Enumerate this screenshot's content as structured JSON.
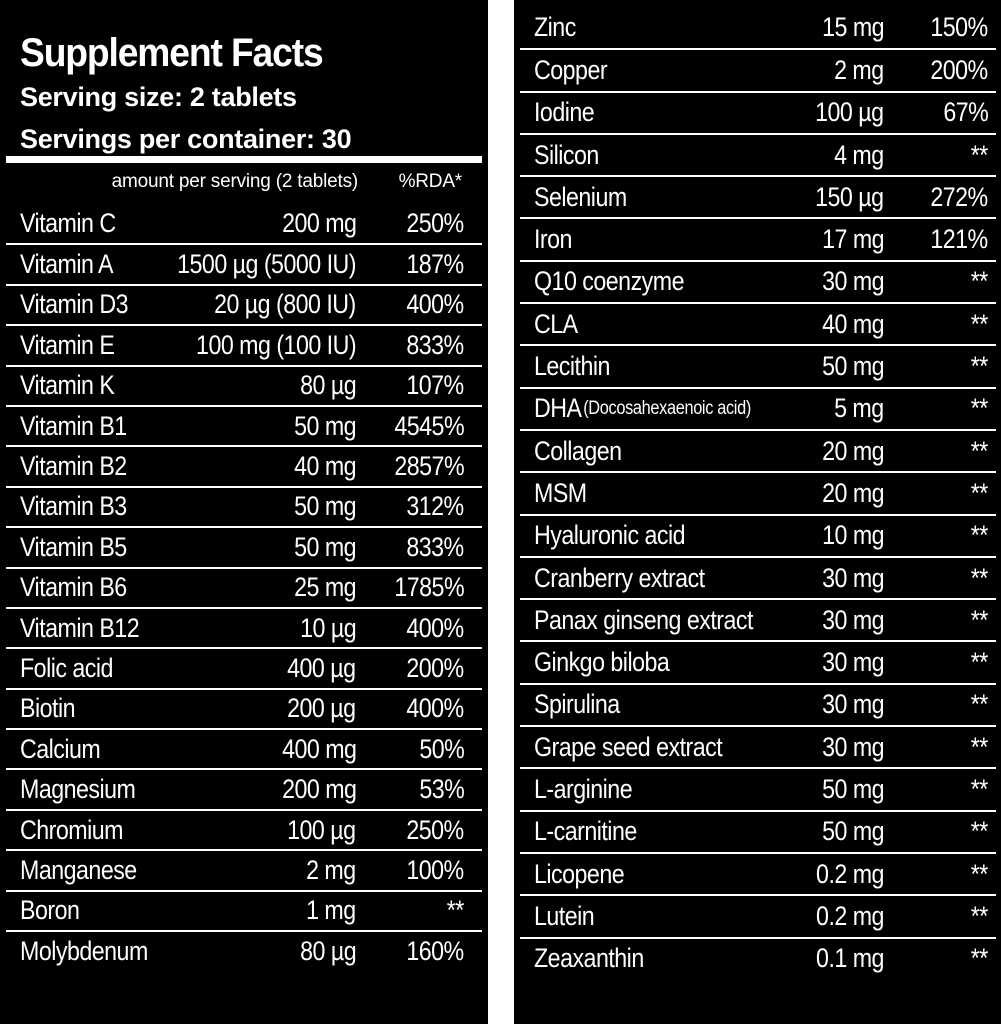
{
  "header": {
    "title": "Supplement Facts",
    "serving_size": "Serving size: 2 tablets",
    "servings_per_container": "Servings per container: 30"
  },
  "columns": {
    "amount_label": "amount per serving (2 tablets)",
    "rda_label": "%RDA*"
  },
  "left_rows": [
    {
      "name": "Vitamin C",
      "amount": "200 mg",
      "rda": "250%"
    },
    {
      "name": "Vitamin A",
      "amount": "1500 µg (5000 IU)",
      "rda": "187%"
    },
    {
      "name": "Vitamin D3",
      "amount": "20 µg (800 IU)",
      "rda": "400%"
    },
    {
      "name": "Vitamin E",
      "amount": "100 mg (100 IU)",
      "rda": "833%"
    },
    {
      "name": "Vitamin K",
      "amount": "80 µg",
      "rda": "107%"
    },
    {
      "name": "Vitamin B1",
      "amount": "50 mg",
      "rda": "4545%"
    },
    {
      "name": "Vitamin B2",
      "amount": "40 mg",
      "rda": "2857%"
    },
    {
      "name": "Vitamin B3",
      "amount": "50 mg",
      "rda": "312%"
    },
    {
      "name": "Vitamin B5",
      "amount": "50 mg",
      "rda": "833%"
    },
    {
      "name": "Vitamin B6",
      "amount": "25 mg",
      "rda": "1785%"
    },
    {
      "name": "Vitamin B12",
      "amount": "10 µg",
      "rda": "400%"
    },
    {
      "name": "Folic acid",
      "amount": "400 µg",
      "rda": "200%"
    },
    {
      "name": "Biotin",
      "amount": "200 µg",
      "rda": "400%"
    },
    {
      "name": "Calcium",
      "amount": "400 mg",
      "rda": "50%"
    },
    {
      "name": "Magnesium",
      "amount": "200 mg",
      "rda": "53%"
    },
    {
      "name": "Chromium",
      "amount": "100 µg",
      "rda": "250%"
    },
    {
      "name": "Manganese",
      "amount": "2 mg",
      "rda": "100%"
    },
    {
      "name": "Boron",
      "amount": "1 mg",
      "rda": "**"
    },
    {
      "name": "Molybdenum",
      "amount": "80 µg",
      "rda": "160%"
    }
  ],
  "right_rows": [
    {
      "name": "Zinc",
      "note": "",
      "amount": "15 mg",
      "rda": "150%"
    },
    {
      "name": "Copper",
      "note": "",
      "amount": "2 mg",
      "rda": "200%"
    },
    {
      "name": "Iodine",
      "note": "",
      "amount": "100 µg",
      "rda": "67%"
    },
    {
      "name": "Silicon",
      "note": "",
      "amount": "4 mg",
      "rda": "**"
    },
    {
      "name": "Selenium",
      "note": "",
      "amount": "150 µg",
      "rda": "272%"
    },
    {
      "name": "Iron",
      "note": "",
      "amount": "17 mg",
      "rda": "121%"
    },
    {
      "name": "Q10 coenzyme",
      "note": "",
      "amount": "30 mg",
      "rda": "**"
    },
    {
      "name": "CLA",
      "note": "",
      "amount": "40 mg",
      "rda": "**"
    },
    {
      "name": "Lecithin",
      "note": "",
      "amount": "50 mg",
      "rda": "**"
    },
    {
      "name": "DHA",
      "note": "(Docosahexaenoic acid)",
      "amount": "5 mg",
      "rda": "**"
    },
    {
      "name": "Collagen",
      "note": "",
      "amount": "20 mg",
      "rda": "**"
    },
    {
      "name": "MSM",
      "note": "",
      "amount": "20 mg",
      "rda": "**"
    },
    {
      "name": "Hyaluronic acid",
      "note": "",
      "amount": "10 mg",
      "rda": "**"
    },
    {
      "name": "Cranberry extract",
      "note": "",
      "amount": "30 mg",
      "rda": "**"
    },
    {
      "name": "Panax ginseng extract",
      "note": "",
      "amount": "30 mg",
      "rda": "**"
    },
    {
      "name": "Ginkgo biloba",
      "note": "",
      "amount": "30 mg",
      "rda": "**"
    },
    {
      "name": "Spirulina",
      "note": "",
      "amount": "30 mg",
      "rda": "**"
    },
    {
      "name": "Grape seed extract",
      "note": "",
      "amount": "30 mg",
      "rda": "**"
    },
    {
      "name": "L-arginine",
      "note": "",
      "amount": "50 mg",
      "rda": "**"
    },
    {
      "name": "L-carnitine",
      "note": "",
      "amount": "50 mg",
      "rda": "**"
    },
    {
      "name": "Licopene",
      "note": "",
      "amount": "0.2 mg",
      "rda": "**"
    },
    {
      "name": "Lutein",
      "note": "",
      "amount": "0.2 mg",
      "rda": "**"
    },
    {
      "name": "Zeaxanthin",
      "note": "",
      "amount": "0.1 mg",
      "rda": "**"
    }
  ]
}
